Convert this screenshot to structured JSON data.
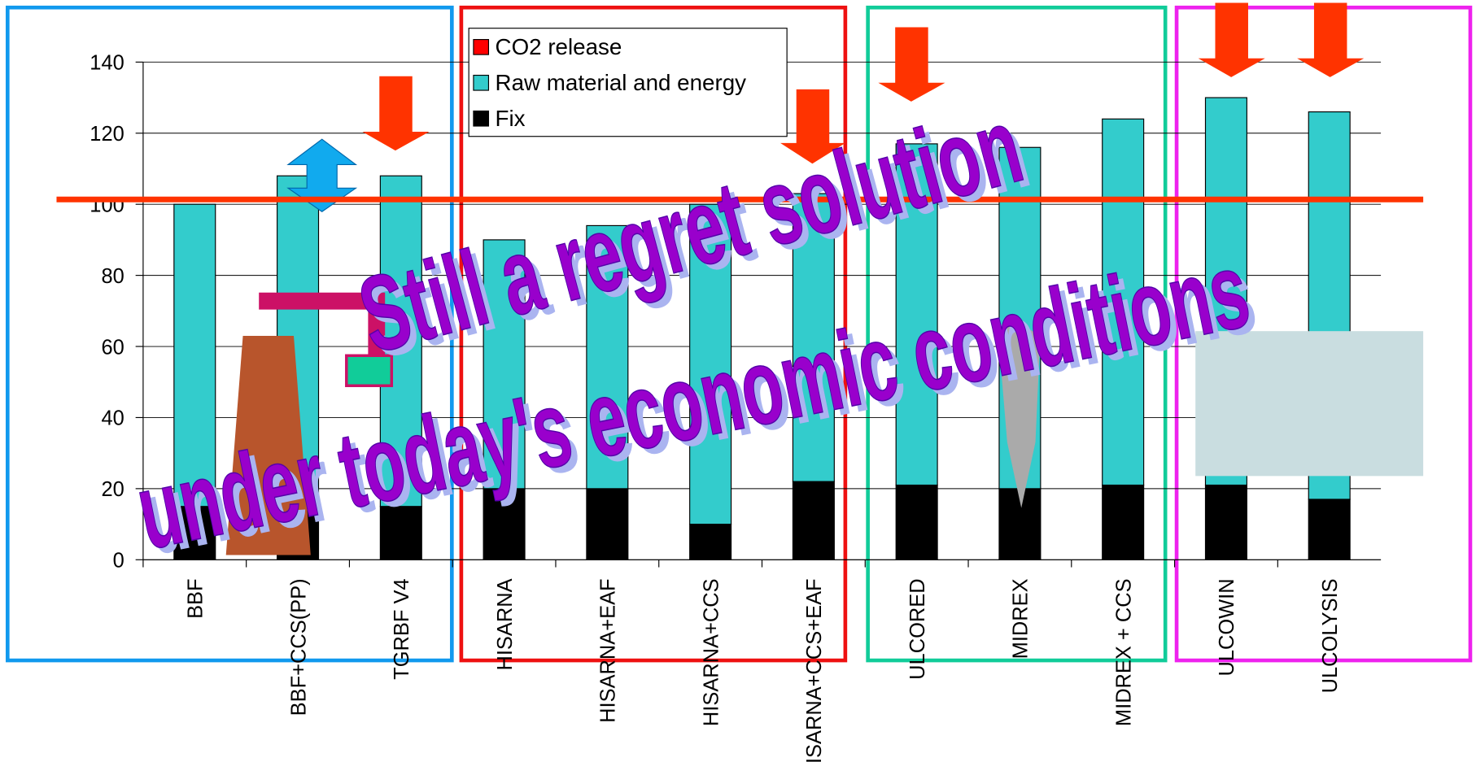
{
  "chart_data": {
    "type": "stacked_bar",
    "categories": [
      "BBF",
      "BBF+CCS(PP)",
      "TGRBF V4",
      "HISARNA",
      "HISARNA+EAF",
      "HISARNA+CCS",
      "HISARNA+CCS+EAF",
      "ULCORED",
      "MIDREX",
      "MIDREX + CCS",
      "ULCOWIN",
      "ULCOLYSIS"
    ],
    "series": [
      {
        "name": "CO2 release",
        "color": "#ff0000",
        "values": [
          0,
          0,
          0,
          0,
          0,
          0,
          0,
          0,
          0,
          0,
          0,
          0
        ]
      },
      {
        "name": "Raw material and energy",
        "color": "#33cccc",
        "values": [
          85,
          93,
          93,
          70,
          74,
          90,
          81,
          96,
          96,
          103,
          109,
          109
        ]
      },
      {
        "name": "Fix",
        "color": "#000000",
        "values": [
          15,
          15,
          15,
          20,
          20,
          10,
          22,
          21,
          20,
          21,
          21,
          17
        ]
      }
    ],
    "ylim": [
      0,
      140
    ],
    "yticks": [
      0,
      20,
      40,
      60,
      80,
      100,
      120,
      140
    ],
    "grid": true,
    "annotations": [
      "Still a regret solution",
      "under today's economic conditions"
    ]
  }
}
